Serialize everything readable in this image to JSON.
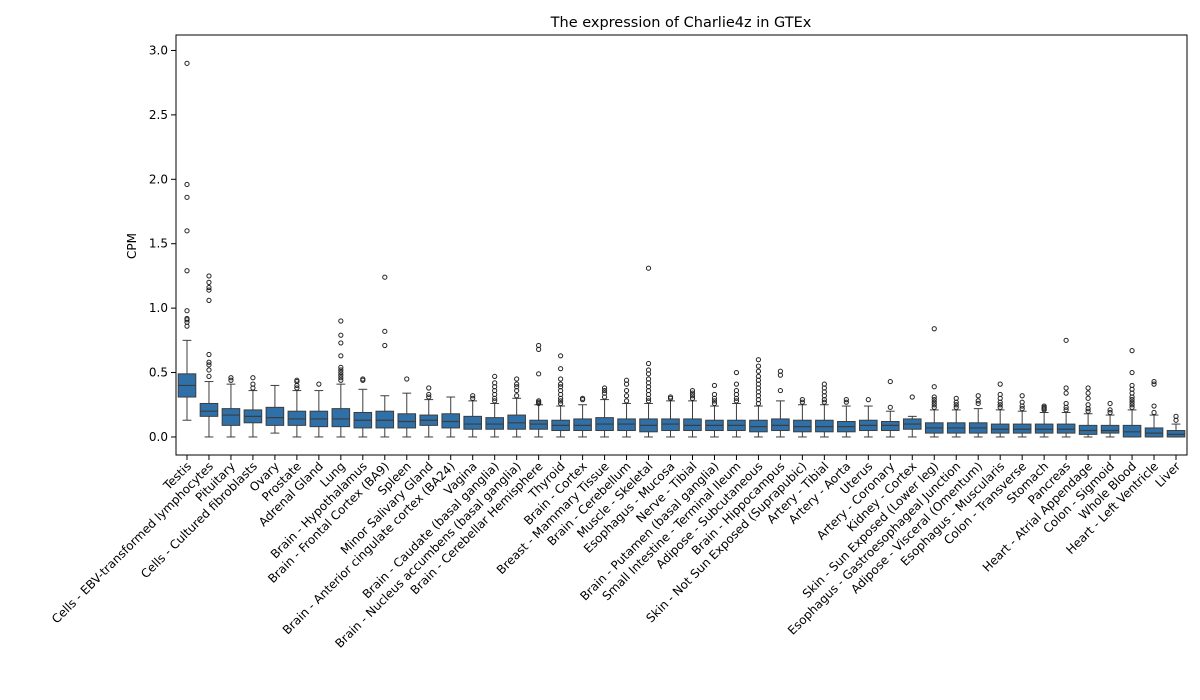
{
  "chart_data": {
    "type": "box",
    "title": "The expression of Charlie4z in GTEx",
    "xlabel": "",
    "ylabel": "CPM",
    "ylim": [
      -0.14,
      3.12
    ],
    "yticks": [
      "0.0",
      "0.5",
      "1.0",
      "1.5",
      "2.0",
      "2.5",
      "3.0"
    ],
    "grid": false,
    "legend": "none",
    "box_color": "#2f70a8",
    "categories": [
      {
        "name": "Testis",
        "whislo": 0.13,
        "q1": 0.31,
        "median": 0.4,
        "q3": 0.49,
        "whishi": 0.75,
        "fliers": [
          0.86,
          0.89,
          0.91,
          0.92,
          0.98,
          1.29,
          1.6,
          1.86,
          1.96,
          2.9
        ]
      },
      {
        "name": "Cells - EBV-transformed lymphocytes",
        "whislo": 0.0,
        "q1": 0.16,
        "median": 0.2,
        "q3": 0.26,
        "whishi": 0.43,
        "fliers": [
          0.47,
          0.52,
          0.56,
          0.58,
          0.64,
          1.06,
          1.14,
          1.16,
          1.2,
          1.25
        ]
      },
      {
        "name": "Pituitary",
        "whislo": 0.0,
        "q1": 0.09,
        "median": 0.17,
        "q3": 0.22,
        "whishi": 0.41,
        "fliers": [
          0.44,
          0.46
        ]
      },
      {
        "name": "Cells - Cultured fibroblasts",
        "whislo": 0.0,
        "q1": 0.11,
        "median": 0.16,
        "q3": 0.21,
        "whishi": 0.36,
        "fliers": [
          0.38,
          0.41,
          0.46
        ]
      },
      {
        "name": "Ovary",
        "whislo": 0.03,
        "q1": 0.09,
        "median": 0.15,
        "q3": 0.23,
        "whishi": 0.4,
        "fliers": []
      },
      {
        "name": "Prostate",
        "whislo": 0.0,
        "q1": 0.09,
        "median": 0.14,
        "q3": 0.2,
        "whishi": 0.36,
        "fliers": [
          0.38,
          0.4,
          0.43,
          0.44
        ]
      },
      {
        "name": "Adrenal Gland",
        "whislo": 0.0,
        "q1": 0.08,
        "median": 0.14,
        "q3": 0.2,
        "whishi": 0.36,
        "fliers": [
          0.41
        ]
      },
      {
        "name": "Lung",
        "whislo": 0.0,
        "q1": 0.08,
        "median": 0.14,
        "q3": 0.22,
        "whishi": 0.41,
        "fliers": [
          0.44,
          0.46,
          0.48,
          0.5,
          0.52,
          0.54,
          0.63,
          0.73,
          0.79,
          0.9
        ]
      },
      {
        "name": "Brain - Hypothalamus",
        "whislo": 0.0,
        "q1": 0.07,
        "median": 0.13,
        "q3": 0.19,
        "whishi": 0.37,
        "fliers": [
          0.44,
          0.45
        ]
      },
      {
        "name": "Brain - Frontal Cortex (BA9)",
        "whislo": 0.0,
        "q1": 0.07,
        "median": 0.13,
        "q3": 0.2,
        "whishi": 0.32,
        "fliers": [
          0.71,
          0.82,
          1.24
        ]
      },
      {
        "name": "Spleen",
        "whislo": 0.0,
        "q1": 0.07,
        "median": 0.12,
        "q3": 0.18,
        "whishi": 0.34,
        "fliers": [
          0.45
        ]
      },
      {
        "name": "Minor Salivary Gland",
        "whislo": 0.0,
        "q1": 0.09,
        "median": 0.13,
        "q3": 0.17,
        "whishi": 0.29,
        "fliers": [
          0.31,
          0.33,
          0.38
        ]
      },
      {
        "name": "Brain - Anterior cingulate cortex (BA24)",
        "whislo": 0.0,
        "q1": 0.07,
        "median": 0.12,
        "q3": 0.18,
        "whishi": 0.31,
        "fliers": []
      },
      {
        "name": "Vagina",
        "whislo": 0.0,
        "q1": 0.06,
        "median": 0.1,
        "q3": 0.16,
        "whishi": 0.28,
        "fliers": [
          0.3,
          0.32
        ]
      },
      {
        "name": "Brain - Caudate (basal ganglia)",
        "whislo": 0.0,
        "q1": 0.06,
        "median": 0.1,
        "q3": 0.15,
        "whishi": 0.26,
        "fliers": [
          0.28,
          0.3,
          0.33,
          0.36,
          0.39,
          0.42,
          0.47
        ]
      },
      {
        "name": "Brain - Nucleus accumbens (basal ganglia)",
        "whislo": 0.0,
        "q1": 0.06,
        "median": 0.11,
        "q3": 0.17,
        "whishi": 0.3,
        "fliers": [
          0.32,
          0.36,
          0.39,
          0.41,
          0.45
        ]
      },
      {
        "name": "Brain - Cerebellar Hemisphere",
        "whislo": 0.0,
        "q1": 0.06,
        "median": 0.1,
        "q3": 0.13,
        "whishi": 0.25,
        "fliers": [
          0.26,
          0.27,
          0.28,
          0.49,
          0.68,
          0.71
        ]
      },
      {
        "name": "Thyroid",
        "whislo": 0.0,
        "q1": 0.05,
        "median": 0.09,
        "q3": 0.13,
        "whishi": 0.24,
        "fliers": [
          0.26,
          0.28,
          0.3,
          0.33,
          0.36,
          0.39,
          0.41,
          0.45,
          0.53,
          0.63
        ]
      },
      {
        "name": "Brain - Cortex",
        "whislo": 0.0,
        "q1": 0.05,
        "median": 0.09,
        "q3": 0.14,
        "whishi": 0.25,
        "fliers": [
          0.29,
          0.3
        ]
      },
      {
        "name": "Breast - Mammary Tissue",
        "whislo": 0.0,
        "q1": 0.05,
        "median": 0.1,
        "q3": 0.15,
        "whishi": 0.29,
        "fliers": [
          0.31,
          0.34,
          0.36,
          0.38
        ]
      },
      {
        "name": "Brain - Cerebellum",
        "whislo": 0.0,
        "q1": 0.05,
        "median": 0.1,
        "q3": 0.14,
        "whishi": 0.26,
        "fliers": [
          0.28,
          0.32,
          0.36,
          0.41,
          0.44
        ]
      },
      {
        "name": "Muscle - Skeletal",
        "whislo": 0.0,
        "q1": 0.04,
        "median": 0.09,
        "q3": 0.14,
        "whishi": 0.26,
        "fliers": [
          0.28,
          0.3,
          0.33,
          0.36,
          0.39,
          0.42,
          0.45,
          0.49,
          0.52,
          0.57,
          1.31
        ]
      },
      {
        "name": "Esophagus - Mucosa",
        "whislo": 0.0,
        "q1": 0.05,
        "median": 0.1,
        "q3": 0.14,
        "whishi": 0.28,
        "fliers": [
          0.3,
          0.31
        ]
      },
      {
        "name": "Nerve - Tibial",
        "whislo": 0.0,
        "q1": 0.05,
        "median": 0.09,
        "q3": 0.14,
        "whishi": 0.28,
        "fliers": [
          0.3,
          0.32,
          0.34,
          0.36
        ]
      },
      {
        "name": "Brain - Putamen (basal ganglia)",
        "whislo": 0.0,
        "q1": 0.05,
        "median": 0.09,
        "q3": 0.13,
        "whishi": 0.24,
        "fliers": [
          0.26,
          0.28,
          0.3,
          0.33,
          0.4
        ]
      },
      {
        "name": "Small Intestine - Terminal Ileum",
        "whislo": 0.0,
        "q1": 0.05,
        "median": 0.09,
        "q3": 0.13,
        "whishi": 0.26,
        "fliers": [
          0.28,
          0.3,
          0.33,
          0.36,
          0.41,
          0.5
        ]
      },
      {
        "name": "Adipose - Subcutaneous",
        "whislo": 0.0,
        "q1": 0.04,
        "median": 0.08,
        "q3": 0.13,
        "whishi": 0.24,
        "fliers": [
          0.26,
          0.29,
          0.32,
          0.35,
          0.38,
          0.41,
          0.44,
          0.47,
          0.51,
          0.55,
          0.6
        ]
      },
      {
        "name": "Brain - Hippocampus",
        "whislo": 0.0,
        "q1": 0.05,
        "median": 0.09,
        "q3": 0.14,
        "whishi": 0.28,
        "fliers": [
          0.36,
          0.48,
          0.51
        ]
      },
      {
        "name": "Skin - Not Sun Exposed (Suprapubic)",
        "whislo": 0.0,
        "q1": 0.04,
        "median": 0.08,
        "q3": 0.13,
        "whishi": 0.25,
        "fliers": [
          0.27,
          0.29
        ]
      },
      {
        "name": "Artery - Tibial",
        "whislo": 0.0,
        "q1": 0.04,
        "median": 0.08,
        "q3": 0.13,
        "whishi": 0.25,
        "fliers": [
          0.27,
          0.29,
          0.32,
          0.35,
          0.38,
          0.41
        ]
      },
      {
        "name": "Artery - Aorta",
        "whislo": 0.0,
        "q1": 0.04,
        "median": 0.08,
        "q3": 0.12,
        "whishi": 0.24,
        "fliers": [
          0.27,
          0.29
        ]
      },
      {
        "name": "Uterus",
        "whislo": 0.0,
        "q1": 0.05,
        "median": 0.09,
        "q3": 0.13,
        "whishi": 0.24,
        "fliers": [
          0.29
        ]
      },
      {
        "name": "Artery - Coronary",
        "whislo": 0.0,
        "q1": 0.05,
        "median": 0.09,
        "q3": 0.12,
        "whishi": 0.2,
        "fliers": [
          0.23,
          0.43
        ]
      },
      {
        "name": "Kidney - Cortex",
        "whislo": 0.0,
        "q1": 0.06,
        "median": 0.1,
        "q3": 0.14,
        "whishi": 0.16,
        "fliers": [
          0.31
        ]
      },
      {
        "name": "Skin - Sun Exposed (Lower leg)",
        "whislo": 0.0,
        "q1": 0.03,
        "median": 0.07,
        "q3": 0.11,
        "whishi": 0.21,
        "fliers": [
          0.23,
          0.25,
          0.27,
          0.29,
          0.31,
          0.39,
          0.84
        ]
      },
      {
        "name": "Esophagus - Gastroesophageal Junction",
        "whislo": 0.0,
        "q1": 0.03,
        "median": 0.07,
        "q3": 0.11,
        "whishi": 0.21,
        "fliers": [
          0.23,
          0.25,
          0.27,
          0.3
        ]
      },
      {
        "name": "Adipose - Visceral (Omentum)",
        "whislo": 0.0,
        "q1": 0.03,
        "median": 0.07,
        "q3": 0.11,
        "whishi": 0.22,
        "fliers": [
          0.26,
          0.28,
          0.32
        ]
      },
      {
        "name": "Esophagus - Muscularis",
        "whislo": 0.0,
        "q1": 0.03,
        "median": 0.06,
        "q3": 0.1,
        "whishi": 0.21,
        "fliers": [
          0.23,
          0.25,
          0.27,
          0.3,
          0.33,
          0.41
        ]
      },
      {
        "name": "Colon - Transverse",
        "whislo": 0.0,
        "q1": 0.03,
        "median": 0.06,
        "q3": 0.1,
        "whishi": 0.2,
        "fliers": [
          0.22,
          0.24,
          0.27,
          0.32
        ]
      },
      {
        "name": "Stomach",
        "whislo": 0.0,
        "q1": 0.03,
        "median": 0.06,
        "q3": 0.1,
        "whishi": 0.19,
        "fliers": [
          0.21,
          0.22,
          0.23,
          0.24
        ]
      },
      {
        "name": "Pancreas",
        "whislo": 0.0,
        "q1": 0.03,
        "median": 0.06,
        "q3": 0.1,
        "whishi": 0.19,
        "fliers": [
          0.21,
          0.23,
          0.26,
          0.34,
          0.38,
          0.75
        ]
      },
      {
        "name": "Heart - Atrial Appendage",
        "whislo": 0.0,
        "q1": 0.02,
        "median": 0.05,
        "q3": 0.09,
        "whishi": 0.18,
        "fliers": [
          0.2,
          0.22,
          0.25,
          0.3,
          0.34,
          0.38
        ]
      },
      {
        "name": "Colon - Sigmoid",
        "whislo": 0.0,
        "q1": 0.03,
        "median": 0.05,
        "q3": 0.09,
        "whishi": 0.17,
        "fliers": [
          0.19,
          0.21,
          0.26
        ]
      },
      {
        "name": "Whole Blood",
        "whislo": 0.0,
        "q1": 0.0,
        "median": 0.04,
        "q3": 0.09,
        "whishi": 0.21,
        "fliers": [
          0.23,
          0.25,
          0.27,
          0.29,
          0.31,
          0.34,
          0.37,
          0.4,
          0.5,
          0.67
        ]
      },
      {
        "name": "Heart - Left Ventricle",
        "whislo": 0.0,
        "q1": 0.0,
        "median": 0.03,
        "q3": 0.07,
        "whishi": 0.17,
        "fliers": [
          0.19,
          0.24,
          0.41,
          0.43
        ]
      },
      {
        "name": "Liver",
        "whislo": 0.0,
        "q1": 0.0,
        "median": 0.02,
        "q3": 0.05,
        "whishi": 0.1,
        "fliers": [
          0.13,
          0.16
        ]
      }
    ]
  }
}
